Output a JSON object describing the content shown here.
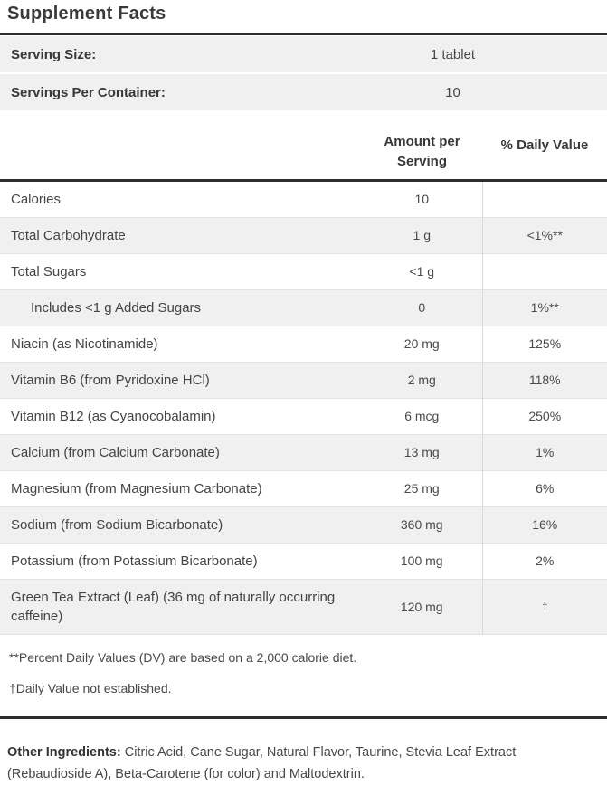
{
  "title": "Supplement Facts",
  "serving_info": {
    "rows": [
      {
        "label": "Serving Size:",
        "value": "1 tablet"
      },
      {
        "label": "Servings Per Container:",
        "value": "10"
      }
    ]
  },
  "facts_table": {
    "headers": {
      "amount": "Amount per Serving",
      "daily_value": "% Daily Value"
    },
    "rows": [
      {
        "name": "Calories",
        "amount": "10",
        "dv": "",
        "indent": false
      },
      {
        "name": "Total Carbohydrate",
        "amount": "1 g",
        "dv": "<1%**",
        "indent": false
      },
      {
        "name": "Total Sugars",
        "amount": "<1 g",
        "dv": "",
        "indent": false
      },
      {
        "name": "Includes <1 g Added Sugars",
        "amount": "0",
        "dv": "1%**",
        "indent": true
      },
      {
        "name": "Niacin (as Nicotinamide)",
        "amount": "20 mg",
        "dv": "125%",
        "indent": false
      },
      {
        "name": "Vitamin B6 (from Pyridoxine HCl)",
        "amount": "2 mg",
        "dv": "118%",
        "indent": false
      },
      {
        "name": "Vitamin B12 (as Cyanocobalamin)",
        "amount": "6 mcg",
        "dv": "250%",
        "indent": false
      },
      {
        "name": "Calcium (from Calcium Carbonate)",
        "amount": "13 mg",
        "dv": "1%",
        "indent": false
      },
      {
        "name": "Magnesium (from Magnesium Carbonate)",
        "amount": "25 mg",
        "dv": "6%",
        "indent": false
      },
      {
        "name": "Sodium (from Sodium Bicarbonate)",
        "amount": "360 mg",
        "dv": "16%",
        "indent": false
      },
      {
        "name": "Potassium (from Potassium Bicarbonate)",
        "amount": "100 mg",
        "dv": "2%",
        "indent": false
      },
      {
        "name": "Green Tea Extract (Leaf) (36 mg of naturally occurring caffeine)",
        "amount": "120 mg",
        "dv": "†",
        "indent": false
      }
    ],
    "footnotes": [
      "**Percent Daily Values (DV) are based on a 2,000 calorie diet.",
      "†Daily Value not established."
    ]
  },
  "other_ingredients": {
    "label": "Other Ingredients:",
    "text": " Citric Acid, Cane Sugar, Natural Flavor, Taurine, Stevia Leaf Extract (Rebaudioside A), Beta-Carotene (for color) and Maltodextrin."
  },
  "colors": {
    "stripe": "#f0f0f0",
    "thick_rule": "#2d2d2d",
    "row_border": "#e3e3e3",
    "column_divider": "#d9d9d9",
    "text": "#414141",
    "heading_text": "#3a3a3a"
  }
}
